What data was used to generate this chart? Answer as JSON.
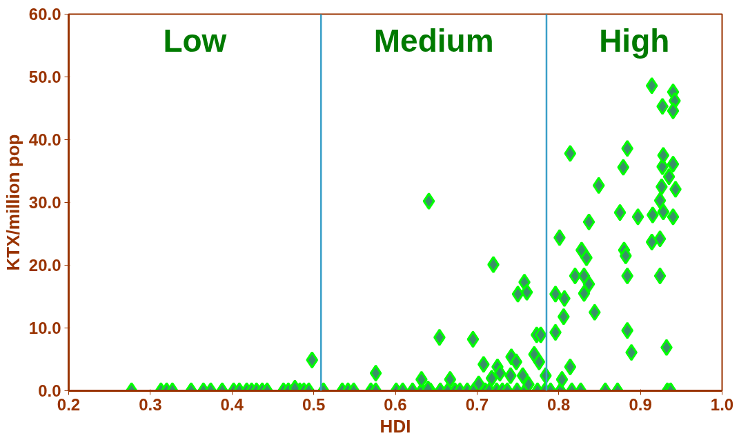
{
  "chart_data": {
    "type": "scatter",
    "xlabel": "HDI",
    "ylabel": "KTX/million pop",
    "xlim": [
      0.2,
      1.0
    ],
    "ylim": [
      0,
      60
    ],
    "xticks": [
      {
        "value": 0.2,
        "label": "0.2"
      },
      {
        "value": 0.3,
        "label": "0.3"
      },
      {
        "value": 0.4,
        "label": "0.4"
      },
      {
        "value": 0.5,
        "label": "0.5"
      },
      {
        "value": 0.6,
        "label": "0.6"
      },
      {
        "value": 0.7,
        "label": "0.7"
      },
      {
        "value": 0.8,
        "label": "0.8"
      },
      {
        "value": 0.9,
        "label": "0.9"
      },
      {
        "value": 1.0,
        "label": "1.0"
      }
    ],
    "yticks": [
      {
        "value": 0,
        "label": "0.0"
      },
      {
        "value": 10,
        "label": "10.0"
      },
      {
        "value": 20,
        "label": "20.0"
      },
      {
        "value": 30,
        "label": "30.0"
      },
      {
        "value": 40,
        "label": "40.0"
      },
      {
        "value": 50,
        "label": "50.0"
      },
      {
        "value": 60,
        "label": "60.0"
      }
    ],
    "grid": false,
    "marker": "diamond",
    "ref_lines": [
      {
        "axis": "x",
        "value": 0.509,
        "color": "#3a9fc8"
      },
      {
        "axis": "x",
        "value": 0.785,
        "color": "#3a9fc8"
      }
    ],
    "annotations": [
      "Low",
      "Medium",
      "High"
    ],
    "series": [
      {
        "color": "#3a9068",
        "x": [
          0.277,
          0.313,
          0.32,
          0.327,
          0.35,
          0.365,
          0.374,
          0.388,
          0.402,
          0.409,
          0.418,
          0.424,
          0.43,
          0.437,
          0.443,
          0.463,
          0.469,
          0.483,
          0.488,
          0.494,
          0.512,
          0.535,
          0.542,
          0.549,
          0.57,
          0.576,
          0.601,
          0.609,
          0.621,
          0.632,
          0.643,
          0.655,
          0.664,
          0.673,
          0.679,
          0.688,
          0.696,
          0.71,
          0.715,
          0.724,
          0.731,
          0.737,
          0.749,
          0.759,
          0.774,
          0.783,
          0.79,
          0.802,
          0.816,
          0.827,
          0.857,
          0.872,
          0.933,
          0.937,
          0.498,
          0.477,
          0.576,
          0.632,
          0.64,
          0.641,
          0.654,
          0.667,
          0.695,
          0.702,
          0.708,
          0.718,
          0.72,
          0.725,
          0.728,
          0.741,
          0.742,
          0.748,
          0.75,
          0.756,
          0.758,
          0.761,
          0.763,
          0.77,
          0.773,
          0.776,
          0.778,
          0.784,
          0.796,
          0.796,
          0.801,
          0.804,
          0.807,
          0.806,
          0.814,
          0.814,
          0.82,
          0.828,
          0.831,
          0.831,
          0.834,
          0.837,
          0.837,
          0.844,
          0.849,
          0.875,
          0.879,
          0.88,
          0.882,
          0.884,
          0.884,
          0.884,
          0.889,
          0.897,
          0.914,
          0.914,
          0.915,
          0.924,
          0.924,
          0.924,
          0.926,
          0.927,
          0.927,
          0.928,
          0.928,
          0.932,
          0.935,
          0.94,
          0.94,
          0.94,
          0.942,
          0.94,
          0.943
        ],
        "values": [
          0,
          0,
          0,
          0,
          0,
          0,
          0,
          0,
          0,
          0,
          0,
          0,
          0,
          0,
          0,
          0,
          0,
          0,
          0,
          0,
          0,
          0,
          0,
          0,
          0,
          0,
          0,
          0,
          0,
          0,
          0,
          0,
          0,
          0,
          0,
          0,
          0,
          0,
          0,
          0,
          0,
          0,
          0,
          0,
          0,
          0,
          0,
          0,
          0,
          0,
          0,
          0,
          0,
          0,
          4.9,
          0.4,
          2.8,
          1.8,
          0.3,
          30.2,
          8.5,
          1.8,
          8.2,
          1.1,
          4.2,
          2.0,
          20.1,
          3.8,
          2.8,
          2.4,
          5.4,
          4.6,
          15.4,
          2.4,
          17.3,
          15.7,
          1.0,
          5.8,
          8.9,
          4.6,
          8.9,
          2.4,
          15.4,
          9.3,
          24.4,
          1.8,
          14.7,
          11.8,
          37.8,
          3.8,
          18.3,
          22.4,
          18.3,
          15.5,
          21.2,
          26.9,
          17.0,
          12.5,
          32.7,
          28.4,
          35.6,
          22.4,
          21.5,
          38.6,
          18.3,
          9.6,
          6.1,
          27.7,
          48.6,
          23.7,
          28.0,
          24.2,
          30.3,
          18.3,
          32.5,
          45.3,
          35.7,
          37.5,
          28.5,
          6.9,
          34.1,
          47.6,
          36.1,
          27.7,
          46.2,
          44.6,
          32.1
        ]
      }
    ]
  }
}
